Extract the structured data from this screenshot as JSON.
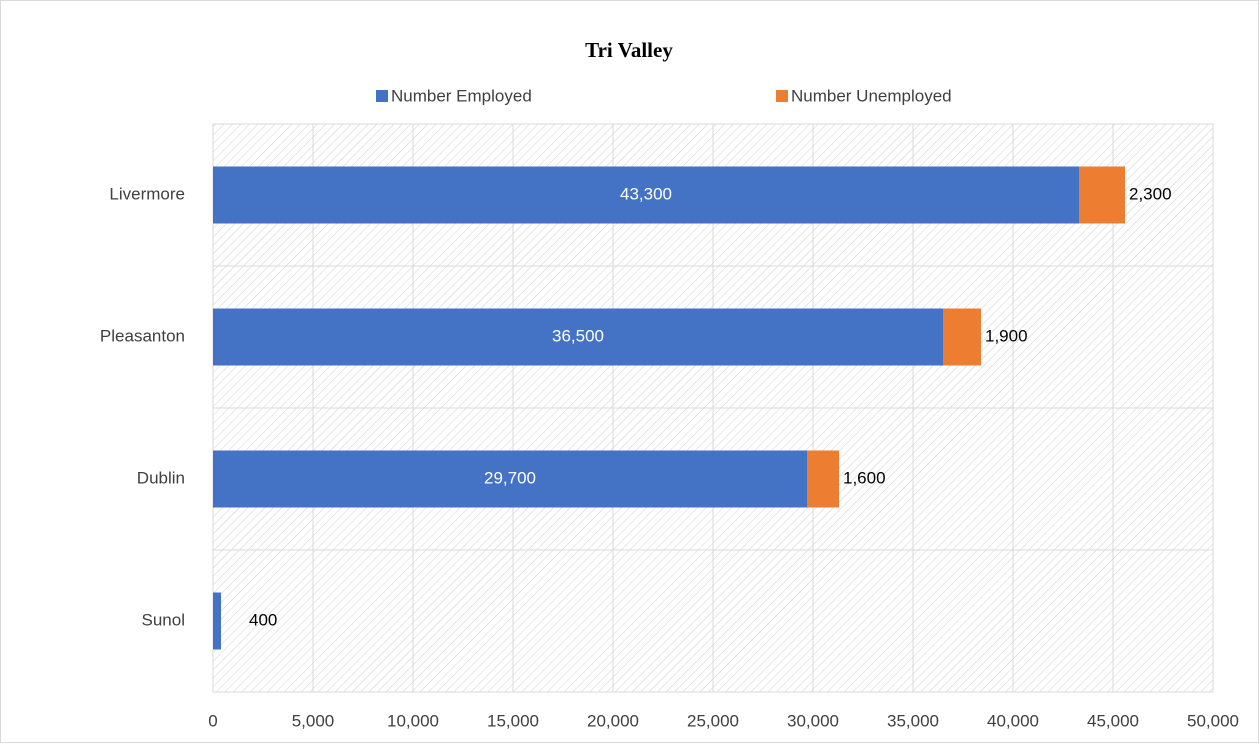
{
  "chart_data": {
    "type": "stacked-bar-horizontal",
    "title": "Tri Valley",
    "categories": [
      "Livermore",
      "Pleasanton",
      "Dublin",
      "Sunol"
    ],
    "series": [
      {
        "name": "Number Employed",
        "color": "#4472c4",
        "values": [
          43300,
          36500,
          29700,
          400
        ],
        "value_labels": [
          "43,300",
          "36,500",
          "29,700",
          "400"
        ]
      },
      {
        "name": "Number Unemployed",
        "color": "#ed7d31",
        "values": [
          2300,
          1900,
          1600,
          null
        ],
        "value_labels": [
          "2,300",
          "1,900",
          "1,600",
          null
        ]
      }
    ],
    "xlim": [
      0,
      50000
    ],
    "xticks": [
      0,
      {
        "value": 5000,
        "label": "5,000"
      },
      {
        "value": 10000,
        "label": "10,000"
      },
      {
        "value": 15000,
        "label": "15,000"
      },
      {
        "value": 20000,
        "label": "20,000"
      },
      {
        "value": 25000,
        "label": "25,000"
      },
      {
        "value": 30000,
        "label": "30,000"
      },
      {
        "value": 35000,
        "label": "35,000"
      },
      {
        "value": 40000,
        "label": "40,000"
      },
      {
        "value": 45000,
        "label": "45,000"
      },
      {
        "value": 50000,
        "label": "50,000"
      }
    ],
    "grid": true,
    "legend": "top"
  }
}
